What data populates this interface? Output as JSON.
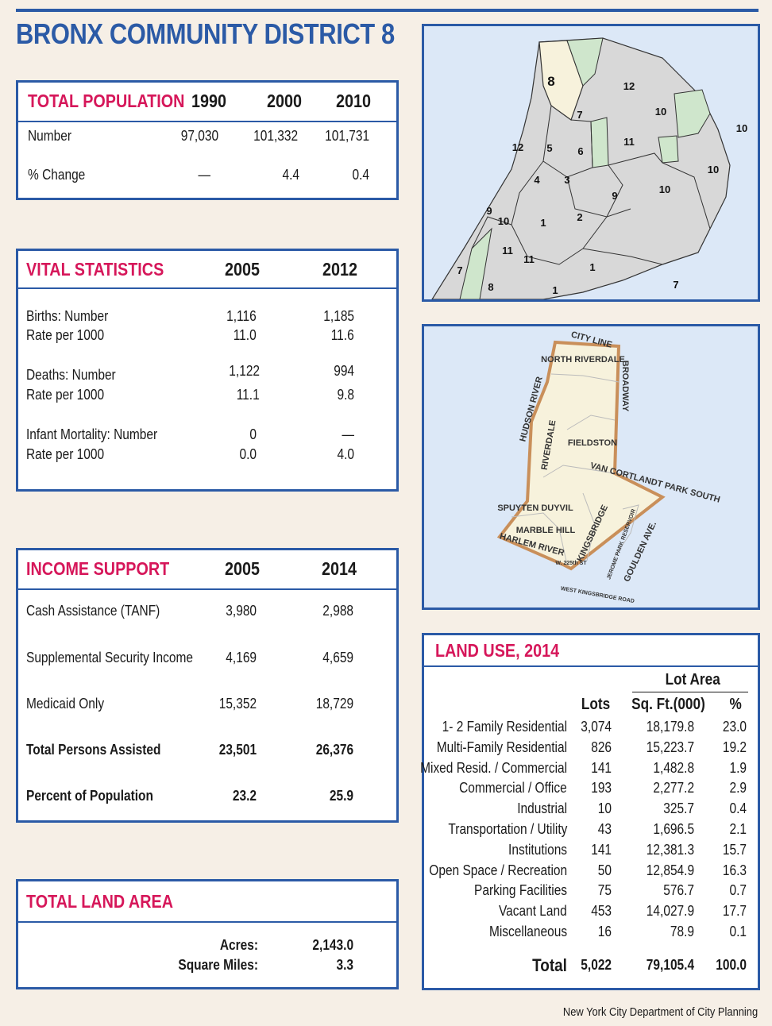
{
  "title": "BRONX COMMUNITY DISTRICT 8",
  "population": {
    "heading": "TOTAL POPULATION",
    "years": [
      "1990",
      "2000",
      "2010"
    ],
    "rows": [
      {
        "label": "Number",
        "values": [
          "97,030",
          "101,332",
          "101,731"
        ]
      },
      {
        "label": "% Change",
        "values": [
          "—",
          "4.4",
          "0.4"
        ]
      }
    ]
  },
  "vital": {
    "heading": "VITAL STATISTICS",
    "years": [
      "2005",
      "2012"
    ],
    "rows": [
      {
        "label": "Births: Number",
        "values": [
          "1,116",
          "1,185"
        ]
      },
      {
        "label": "Rate per 1000",
        "values": [
          "11.0",
          "11.6"
        ]
      },
      {
        "label": "Deaths: Number",
        "values": [
          "1,122",
          "994"
        ]
      },
      {
        "label": "Rate per 1000",
        "values": [
          "11.1",
          "9.8"
        ]
      },
      {
        "label": "Infant Mortality: Number",
        "values": [
          "0",
          "—"
        ]
      },
      {
        "label": "Rate per 1000",
        "values": [
          "0.0",
          "4.0"
        ]
      }
    ]
  },
  "income": {
    "heading": "INCOME SUPPORT",
    "years": [
      "2005",
      "2014"
    ],
    "rows": [
      {
        "label": "Cash Assistance (TANF)",
        "values": [
          "3,980",
          "2,988"
        ]
      },
      {
        "label": "Supplemental Security Income",
        "values": [
          "4,169",
          "4,659"
        ]
      },
      {
        "label": "Medicaid Only",
        "values": [
          "15,352",
          "18,729"
        ]
      },
      {
        "label": "Total Persons Assisted",
        "values": [
          "23,501",
          "26,376"
        ]
      },
      {
        "label": "Percent of Population",
        "values": [
          "23.2",
          "25.9"
        ]
      }
    ]
  },
  "land_area": {
    "heading": "TOTAL LAND AREA",
    "rows": [
      {
        "label": "Acres:",
        "value": "2,143.0"
      },
      {
        "label": "Square Miles:",
        "value": "3.3"
      }
    ]
  },
  "land_use": {
    "heading": "LAND USE, 2014",
    "group_header": "Lot Area",
    "columns": [
      "Lots",
      "Sq. Ft.(000)",
      "%"
    ],
    "rows": [
      {
        "label": "1- 2 Family Residential",
        "lots": "3,074",
        "area": "18,179.8",
        "pct": "23.0"
      },
      {
        "label": "Multi-Family Residential",
        "lots": "826",
        "area": "15,223.7",
        "pct": "19.2"
      },
      {
        "label": "Mixed Resid. / Commercial",
        "lots": "141",
        "area": "1,482.8",
        "pct": "1.9"
      },
      {
        "label": "Commercial / Office",
        "lots": "193",
        "area": "2,277.2",
        "pct": "2.9"
      },
      {
        "label": "Industrial",
        "lots": "10",
        "area": "325.7",
        "pct": "0.4"
      },
      {
        "label": "Transportation / Utility",
        "lots": "43",
        "area": "1,696.5",
        "pct": "2.1"
      },
      {
        "label": "Institutions",
        "lots": "141",
        "area": "12,381.3",
        "pct": "15.7"
      },
      {
        "label": "Open Space / Recreation",
        "lots": "50",
        "area": "12,854.9",
        "pct": "16.3"
      },
      {
        "label": "Parking Facilities",
        "lots": "75",
        "area": "576.7",
        "pct": "0.7"
      },
      {
        "label": "Vacant Land",
        "lots": "453",
        "area": "14,027.9",
        "pct": "17.7"
      },
      {
        "label": "Miscellaneous",
        "lots": "16",
        "area": "78.9",
        "pct": "0.1"
      }
    ],
    "total": {
      "label": "Total",
      "lots": "5,022",
      "area": "79,105.4",
      "pct": "100.0"
    }
  },
  "borough_map": {
    "labels": [
      "8",
      "12",
      "7",
      "10",
      "10",
      "12",
      "5",
      "6",
      "11",
      "10",
      "4",
      "3",
      "9",
      "10",
      "9",
      "10",
      "1",
      "2",
      "11",
      "11",
      "1",
      "7",
      "8",
      "1",
      "7"
    ]
  },
  "district_map": {
    "labels": [
      "CITY LINE",
      "NORTH RIVERDALE",
      "BROADWAY",
      "HUDSON RIVER",
      "RIVERDALE",
      "FIELDSTON",
      "VAN CORTLANDT PARK SOUTH",
      "SPUYTEN DUYVIL",
      "MARBLE HILL",
      "KINGSBRIDGE",
      "JEROME PARK RESERVOIR",
      "GOULDEN AVE.",
      "HARLEM RIVER",
      "W. 225th ST",
      "WEST KINGSBRIDGE ROAD"
    ]
  },
  "footer": "New York City Department of City Planning",
  "colors": {
    "blue": "#2b5aa6",
    "magenta": "#d6175a",
    "map_water": "#dce8f7",
    "district_fill": "#f7f2dc",
    "district_outline": "#c98f5a"
  }
}
